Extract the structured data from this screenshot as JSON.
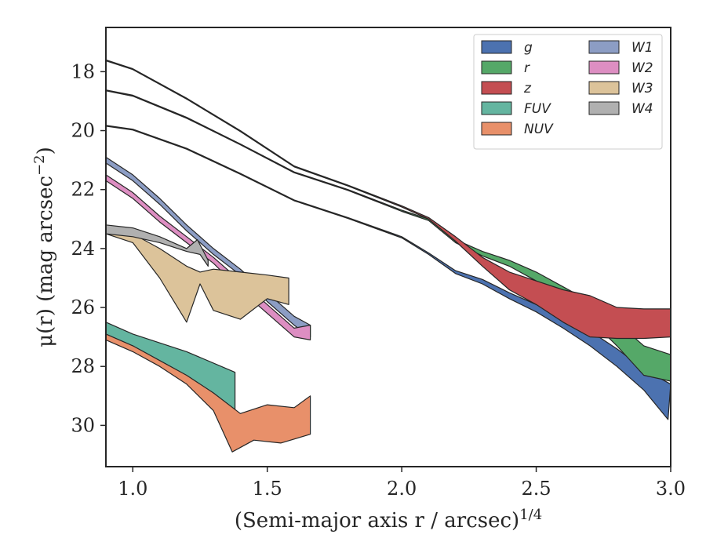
{
  "chart_data": {
    "type": "area",
    "xlabel": "(Semi-major axis r / arcsec)^{1/4}",
    "ylabel": "μ(r) (mag arcsec^{−2})",
    "xlim": [
      0.9,
      3.0
    ],
    "ylim": [
      31.4,
      16.5
    ],
    "y_inverted": true,
    "x_ticks": [
      "1.0",
      "1.5",
      "2.0",
      "2.5",
      "3.0"
    ],
    "y_ticks": [
      "18",
      "20",
      "22",
      "24",
      "26",
      "28",
      "30"
    ],
    "grid": false,
    "legend_position": "top-right",
    "legend_columns": 2,
    "series": [
      {
        "name": "g",
        "color": "#4C72B0",
        "upper": [
          [
            0.9,
            19.82
          ],
          [
            1.0,
            19.95
          ],
          [
            1.2,
            20.6
          ],
          [
            1.4,
            21.45
          ],
          [
            1.6,
            22.35
          ],
          [
            1.8,
            22.95
          ],
          [
            2.0,
            23.6
          ],
          [
            2.1,
            24.15
          ],
          [
            2.2,
            24.75
          ],
          [
            2.3,
            25.05
          ],
          [
            2.4,
            25.5
          ],
          [
            2.5,
            25.9
          ],
          [
            2.6,
            26.3
          ],
          [
            2.7,
            26.8
          ],
          [
            2.8,
            27.4
          ],
          [
            2.9,
            28.1
          ],
          [
            3.0,
            28.6
          ]
        ],
        "lower": [
          [
            0.9,
            19.85
          ],
          [
            1.0,
            19.98
          ],
          [
            1.2,
            20.63
          ],
          [
            1.4,
            21.48
          ],
          [
            1.6,
            22.38
          ],
          [
            1.8,
            22.98
          ],
          [
            2.0,
            23.64
          ],
          [
            2.1,
            24.2
          ],
          [
            2.2,
            24.85
          ],
          [
            2.3,
            25.2
          ],
          [
            2.4,
            25.7
          ],
          [
            2.5,
            26.15
          ],
          [
            2.6,
            26.7
          ],
          [
            2.7,
            27.3
          ],
          [
            2.8,
            28.0
          ],
          [
            2.9,
            28.8
          ],
          [
            2.99,
            29.8
          ]
        ]
      },
      {
        "name": "r",
        "color": "#55A868",
        "upper": [
          [
            0.9,
            18.62
          ],
          [
            1.0,
            18.8
          ],
          [
            1.2,
            19.55
          ],
          [
            1.4,
            20.45
          ],
          [
            1.6,
            21.4
          ],
          [
            1.8,
            22.0
          ],
          [
            2.0,
            22.7
          ],
          [
            2.1,
            23.0
          ],
          [
            2.2,
            23.7
          ],
          [
            2.3,
            24.1
          ],
          [
            2.4,
            24.4
          ],
          [
            2.5,
            24.8
          ],
          [
            2.6,
            25.3
          ],
          [
            2.7,
            25.8
          ],
          [
            2.8,
            26.5
          ],
          [
            2.9,
            27.3
          ],
          [
            3.0,
            27.6
          ]
        ],
        "lower": [
          [
            0.9,
            18.65
          ],
          [
            1.0,
            18.83
          ],
          [
            1.2,
            19.58
          ],
          [
            1.4,
            20.48
          ],
          [
            1.6,
            21.43
          ],
          [
            1.8,
            22.03
          ],
          [
            2.0,
            22.74
          ],
          [
            2.1,
            23.05
          ],
          [
            2.2,
            23.8
          ],
          [
            2.3,
            24.25
          ],
          [
            2.4,
            24.6
          ],
          [
            2.5,
            25.1
          ],
          [
            2.6,
            25.7
          ],
          [
            2.7,
            26.4
          ],
          [
            2.8,
            27.3
          ],
          [
            2.9,
            28.3
          ],
          [
            3.0,
            28.5
          ]
        ]
      },
      {
        "name": "z",
        "color": "#C44E52",
        "upper": [
          [
            0.9,
            17.6
          ],
          [
            1.0,
            17.9
          ],
          [
            1.2,
            18.9
          ],
          [
            1.4,
            20.0
          ],
          [
            1.6,
            21.2
          ],
          [
            1.8,
            21.85
          ],
          [
            2.0,
            22.55
          ],
          [
            2.1,
            22.95
          ],
          [
            2.2,
            23.6
          ],
          [
            2.3,
            24.3
          ],
          [
            2.4,
            24.8
          ],
          [
            2.5,
            25.1
          ],
          [
            2.6,
            25.4
          ],
          [
            2.7,
            25.6
          ],
          [
            2.8,
            26.0
          ],
          [
            2.9,
            26.05
          ],
          [
            3.0,
            26.05
          ]
        ],
        "lower": [
          [
            0.9,
            17.63
          ],
          [
            1.0,
            17.93
          ],
          [
            1.2,
            18.93
          ],
          [
            1.4,
            20.03
          ],
          [
            1.6,
            21.23
          ],
          [
            1.8,
            21.88
          ],
          [
            2.0,
            22.59
          ],
          [
            2.1,
            23.0
          ],
          [
            2.2,
            23.75
          ],
          [
            2.3,
            24.6
          ],
          [
            2.4,
            25.4
          ],
          [
            2.5,
            25.9
          ],
          [
            2.6,
            26.5
          ],
          [
            2.7,
            27.0
          ],
          [
            2.8,
            27.05
          ],
          [
            2.9,
            27.05
          ],
          [
            3.0,
            27.0
          ]
        ]
      },
      {
        "name": "FUV",
        "color": "#64B5A0",
        "upper": [
          [
            0.9,
            26.5
          ],
          [
            1.0,
            26.9
          ],
          [
            1.2,
            27.5
          ],
          [
            1.38,
            28.2
          ]
        ],
        "lower": [
          [
            0.9,
            27.0
          ],
          [
            1.0,
            27.3
          ],
          [
            1.1,
            27.9
          ],
          [
            1.2,
            28.5
          ],
          [
            1.3,
            29.0
          ],
          [
            1.38,
            29.7
          ]
        ]
      },
      {
        "name": "NUV",
        "color": "#E8906A",
        "upper": [
          [
            0.9,
            26.9
          ],
          [
            1.0,
            27.3
          ],
          [
            1.1,
            27.8
          ],
          [
            1.2,
            28.3
          ],
          [
            1.3,
            28.9
          ],
          [
            1.4,
            29.6
          ],
          [
            1.5,
            29.3
          ],
          [
            1.6,
            29.4
          ],
          [
            1.66,
            29.0
          ]
        ],
        "lower": [
          [
            0.9,
            27.1
          ],
          [
            1.0,
            27.5
          ],
          [
            1.1,
            28.0
          ],
          [
            1.2,
            28.6
          ],
          [
            1.3,
            29.5
          ],
          [
            1.37,
            30.9
          ],
          [
            1.45,
            30.5
          ],
          [
            1.55,
            30.6
          ],
          [
            1.66,
            30.3
          ]
        ]
      },
      {
        "name": "W1",
        "color": "#8C9DC4",
        "upper": [
          [
            0.9,
            20.9
          ],
          [
            1.0,
            21.5
          ],
          [
            1.1,
            22.3
          ],
          [
            1.2,
            23.2
          ],
          [
            1.3,
            24.0
          ],
          [
            1.4,
            24.7
          ],
          [
            1.5,
            25.5
          ],
          [
            1.6,
            26.3
          ],
          [
            1.66,
            26.6
          ]
        ],
        "lower": [
          [
            0.9,
            21.1
          ],
          [
            1.0,
            21.7
          ],
          [
            1.1,
            22.5
          ],
          [
            1.2,
            23.4
          ],
          [
            1.3,
            24.2
          ],
          [
            1.4,
            24.9
          ],
          [
            1.5,
            25.8
          ],
          [
            1.6,
            26.6
          ],
          [
            1.66,
            27.0
          ]
        ]
      },
      {
        "name": "W2",
        "color": "#DD8EC2",
        "upper": [
          [
            0.9,
            21.5
          ],
          [
            1.0,
            22.1
          ],
          [
            1.1,
            22.9
          ],
          [
            1.2,
            23.6
          ],
          [
            1.3,
            24.3
          ],
          [
            1.4,
            25.1
          ],
          [
            1.5,
            25.9
          ],
          [
            1.6,
            26.7
          ],
          [
            1.66,
            26.6
          ]
        ],
        "lower": [
          [
            0.9,
            21.7
          ],
          [
            1.0,
            22.3
          ],
          [
            1.1,
            23.1
          ],
          [
            1.2,
            23.8
          ],
          [
            1.3,
            24.5
          ],
          [
            1.4,
            25.4
          ],
          [
            1.5,
            26.2
          ],
          [
            1.6,
            27.0
          ],
          [
            1.66,
            27.1
          ]
        ]
      },
      {
        "name": "W3",
        "color": "#DCC39A",
        "upper": [
          [
            0.9,
            23.3
          ],
          [
            1.0,
            23.5
          ],
          [
            1.1,
            24.0
          ],
          [
            1.2,
            24.6
          ],
          [
            1.25,
            24.8
          ],
          [
            1.3,
            24.7
          ],
          [
            1.4,
            24.8
          ],
          [
            1.5,
            24.9
          ],
          [
            1.58,
            25.0
          ]
        ],
        "lower": [
          [
            0.9,
            23.5
          ],
          [
            1.0,
            23.8
          ],
          [
            1.1,
            25.0
          ],
          [
            1.2,
            26.5
          ],
          [
            1.25,
            25.2
          ],
          [
            1.3,
            26.1
          ],
          [
            1.4,
            26.4
          ],
          [
            1.5,
            25.7
          ],
          [
            1.58,
            25.9
          ]
        ]
      },
      {
        "name": "W4",
        "color": "#B0B0B0",
        "upper": [
          [
            0.9,
            23.2
          ],
          [
            1.0,
            23.3
          ],
          [
            1.1,
            23.6
          ],
          [
            1.2,
            24.0
          ],
          [
            1.24,
            23.7
          ],
          [
            1.28,
            24.4
          ]
        ],
        "lower": [
          [
            0.9,
            23.5
          ],
          [
            1.0,
            23.6
          ],
          [
            1.1,
            23.8
          ],
          [
            1.2,
            24.1
          ],
          [
            1.25,
            24.2
          ],
          [
            1.28,
            24.6
          ]
        ]
      }
    ]
  }
}
